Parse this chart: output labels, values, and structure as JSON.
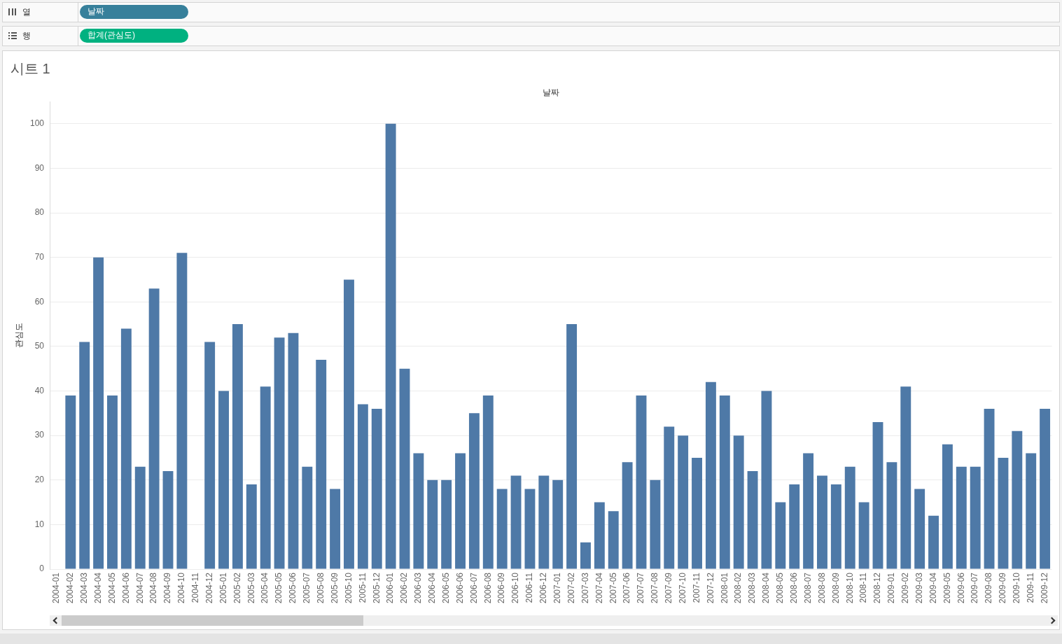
{
  "chart_data": {
    "type": "bar",
    "title": "시트 1",
    "xlabel": "날짜",
    "ylabel": "관심도",
    "annotations": [
      "열",
      "날짜",
      "행",
      "합계(관심도)"
    ],
    "categories": [
      "2004-01",
      "2004-02",
      "2004-03",
      "2004-04",
      "2004-05",
      "2004-06",
      "2004-07",
      "2004-08",
      "2004-09",
      "2004-10",
      "2004-11",
      "2004-12",
      "2005-01",
      "2005-02",
      "2005-03",
      "2005-04",
      "2005-05",
      "2005-06",
      "2005-07",
      "2005-08",
      "2005-09",
      "2005-10",
      "2005-11",
      "2005-12",
      "2006-01",
      "2006-02",
      "2006-03",
      "2006-04",
      "2006-05",
      "2006-06",
      "2006-07",
      "2006-08",
      "2006-09",
      "2006-10",
      "2006-11",
      "2006-12",
      "2007-01",
      "2007-02",
      "2007-03",
      "2007-04",
      "2007-05",
      "2007-06",
      "2007-07",
      "2007-08",
      "2007-09",
      "2007-10",
      "2007-11",
      "2007-12",
      "2008-01",
      "2008-02",
      "2008-03",
      "2008-04",
      "2008-05",
      "2008-06",
      "2008-07",
      "2008-08",
      "2008-09",
      "2008-10",
      "2008-11",
      "2008-12",
      "2009-01",
      "2009-02",
      "2009-03",
      "2009-04",
      "2009-05",
      "2009-06",
      "2009-07",
      "2009-08",
      "2009-09",
      "2009-10",
      "2009-11",
      "2009-12"
    ],
    "values": [
      null,
      39,
      51,
      70,
      39,
      54,
      23,
      63,
      22,
      71,
      null,
      51,
      40,
      55,
      19,
      41,
      52,
      53,
      23,
      47,
      18,
      65,
      37,
      36,
      100,
      45,
      26,
      20,
      20,
      26,
      35,
      39,
      18,
      21,
      18,
      21,
      20,
      55,
      6,
      15,
      13,
      24,
      39,
      20,
      32,
      30,
      25,
      42,
      39,
      30,
      22,
      40,
      15,
      19,
      26,
      21,
      19,
      23,
      15,
      33,
      24,
      41,
      18,
      12,
      28,
      23,
      23,
      36,
      25,
      31,
      26,
      36
    ],
    "color": "#4e79a7",
    "ylim": [
      0,
      105
    ],
    "yticks": [
      0,
      10,
      20,
      30,
      40,
      50,
      60,
      70,
      80,
      90,
      100
    ],
    "grid": "y"
  }
}
